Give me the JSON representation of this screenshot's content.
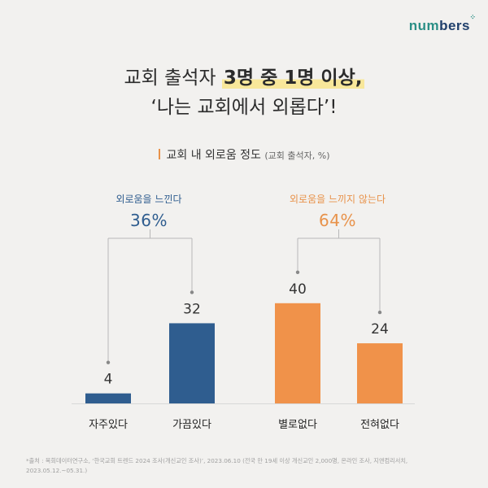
{
  "brand": {
    "part1": "num",
    "part2": "bers"
  },
  "headline": {
    "line1_pre": "교회 출석자 ",
    "line1_highlight": "3명 중 1명 이상,",
    "line2": "‘나는 교회에서 외롭다’!"
  },
  "subtitle": {
    "title": "교회 내 외로움 정도",
    "unit": "(교회 출석자, %)"
  },
  "groups": [
    {
      "label": "외로움을 느낀다",
      "value": "36%"
    },
    {
      "label": "외로움을 느끼지 않는다",
      "value": "64%"
    }
  ],
  "chart_data": {
    "type": "bar",
    "title": "교회 내 외로움 정도",
    "unit": "(교회 출석자, %)",
    "categories": [
      "자주있다",
      "가끔있다",
      "별로없다",
      "전혀없다"
    ],
    "values": [
      4,
      32,
      40,
      24
    ],
    "colors": [
      "#2f5d8f",
      "#2f5d8f",
      "#f0924a",
      "#f0924a"
    ],
    "groups": [
      {
        "label": "외로움을 느낀다",
        "total": 36,
        "members": [
          0,
          1
        ]
      },
      {
        "label": "외로움을 느끼지 않는다",
        "total": 64,
        "members": [
          2,
          3
        ]
      }
    ],
    "ylim": [
      0,
      45
    ]
  },
  "footnote": "*출처 : 목회데이터연구소, ‘한국교회 트렌드 2024 조사(개신교인 조사)’, 2023.06.10 (전국 만 19세 이상 개신교인 2,000명, 온라인 조사, 지앤컴리서치, 2023.05.12.~05.31.)"
}
